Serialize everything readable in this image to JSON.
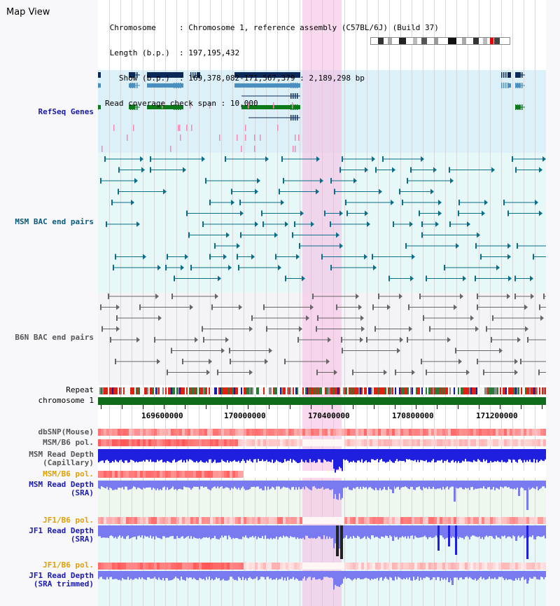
{
  "title": "Map View",
  "header": {
    "chromosome_label": "Chromosome",
    "chromosome_value": "Chromosome 1, reference assembly (C57BL/6J) (Build 37)",
    "length_label": "Length (b.p.)",
    "length_value": "197,195,432",
    "show_label": "Show (b.p.)",
    "show_value": "169,378,082-171,567,379 : 2,189,298 bp",
    "coverage_label": "Read coverage check span",
    "coverage_value": "10,000"
  },
  "tracks": {
    "refseq": "RefSeq Genes",
    "msm_bac": "MSM BAC end pairs",
    "b6n_bac": "B6N BAC end pairs",
    "repeat": "Repeat",
    "chromosome": "chromosome 1",
    "dbsnp": "dbSNP(Mouse)",
    "msm_b6_pol": "MSM/B6 pol.",
    "msm_depth_cap": "MSM Read Depth\n(Capillary)",
    "msm_b6_pol2": "MSM/B6 pol.",
    "msm_depth_sra": "MSM Read Depth\n(SRA)",
    "jf1_b6_pol": "JF1/B6 pol.",
    "jf1_depth_sra": "JF1 Read Depth\n(SRA)",
    "jf1_b6_pol2": "JF1/B6 pol.",
    "jf1_depth_trim": "JF1 Read Depth\n(SRA trimmed)"
  },
  "ruler": {
    "ticks": [
      "169600000",
      "170000000",
      "170400000",
      "170800000",
      "171200000"
    ]
  },
  "colors": {
    "refseq": "#1a237e",
    "msm_bac": "#0a6d8a",
    "b6n_bac": "#555555",
    "chromosome": "#0d6b1a",
    "highlight": "#f5b9e1",
    "depth_msm": "#1f1fe0",
    "depth_sra": "#7a7af0"
  }
}
